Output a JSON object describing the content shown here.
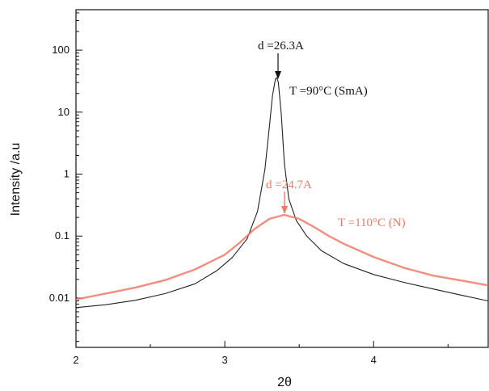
{
  "chart_data": {
    "type": "line",
    "xlabel": "2θ",
    "ylabel": "Intensity /a.u",
    "xlim": [
      2,
      4.77
    ],
    "ylim": [
      0.0016,
      450
    ],
    "yscale": "log",
    "xticks": [
      2,
      3,
      4
    ],
    "xtick_labels": [
      "2",
      "3",
      "4"
    ],
    "yticks": [
      0.01,
      0.1,
      1,
      10,
      100
    ],
    "ytick_labels": [
      "0.01",
      "0.1",
      "1",
      "10",
      "100"
    ],
    "grid": false,
    "series": [
      {
        "color": "#222222",
        "x": [
          2.0,
          2.2,
          2.4,
          2.6,
          2.8,
          2.95,
          3.05,
          3.15,
          3.22,
          3.27,
          3.3,
          3.32,
          3.34,
          3.35,
          3.36,
          3.38,
          3.4,
          3.43,
          3.48,
          3.55,
          3.65,
          3.8,
          4.0,
          4.2,
          4.4,
          4.6,
          4.77
        ],
        "y": [
          0.007,
          0.0078,
          0.0092,
          0.0118,
          0.017,
          0.028,
          0.045,
          0.09,
          0.25,
          1.2,
          6.0,
          18.0,
          34.0,
          36.0,
          30.0,
          9.0,
          1.5,
          0.4,
          0.18,
          0.1,
          0.058,
          0.036,
          0.024,
          0.018,
          0.014,
          0.011,
          0.009
        ]
      },
      {
        "color": "#ef7a6a",
        "x": [
          2.0,
          2.2,
          2.4,
          2.6,
          2.8,
          3.0,
          3.1,
          3.2,
          3.3,
          3.4,
          3.5,
          3.6,
          3.7,
          3.8,
          4.0,
          4.2,
          4.4,
          4.6,
          4.77
        ],
        "y": [
          0.0095,
          0.0118,
          0.0148,
          0.0195,
          0.029,
          0.05,
          0.078,
          0.13,
          0.19,
          0.22,
          0.19,
          0.14,
          0.1,
          0.075,
          0.046,
          0.031,
          0.023,
          0.019,
          0.016
        ]
      }
    ],
    "annotations": [
      {
        "text": "d =26.3A",
        "color": "#111111",
        "x": 3.34,
        "y": 36
      },
      {
        "text": "T =90°C (SmA)",
        "color": "#111111"
      },
      {
        "text": "d =24.7A",
        "color": "#ef7a6a",
        "x": 3.39,
        "y": 0.22
      },
      {
        "text": "T =110°C (N)",
        "color": "#ef7a6a"
      }
    ]
  }
}
